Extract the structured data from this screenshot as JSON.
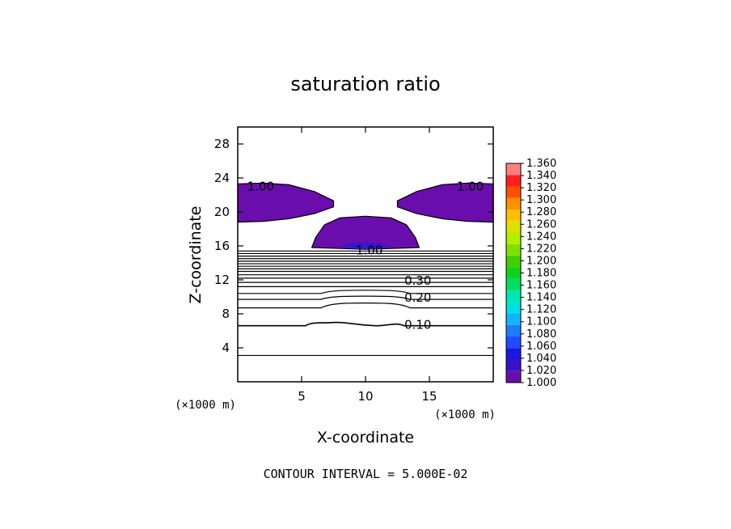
{
  "chart_data": {
    "type": "contour",
    "title": "saturation ratio",
    "xlabel": "X-coordinate",
    "ylabel": "Z-coordinate",
    "x_unit": "(×1000 m)",
    "y_unit": "(×1000 m)",
    "xlim": [
      0,
      20
    ],
    "ylim": [
      0,
      30
    ],
    "x_ticks": [
      5,
      10,
      15
    ],
    "y_ticks": [
      4,
      8,
      12,
      16,
      20,
      24,
      28
    ],
    "contour_interval_label": "CONTOUR INTERVAL = 5.000E-02",
    "contour_interval": 0.05,
    "contour_labels": [
      {
        "text": "1.00",
        "x": 1.8,
        "z": 23.0
      },
      {
        "text": "1.00",
        "x": 18.2,
        "z": 23.0
      },
      {
        "text": "1.00",
        "x": 10.3,
        "z": 15.5
      },
      {
        "text": "0.30",
        "x": 14.1,
        "z": 11.9
      },
      {
        "text": "0.20",
        "x": 14.1,
        "z": 9.9
      },
      {
        "text": "0.10",
        "x": 14.1,
        "z": 6.7
      }
    ],
    "saturated_regions": [
      {
        "name": "upper-left",
        "points": [
          [
            0,
            23.3
          ],
          [
            2,
            23.4
          ],
          [
            4,
            23.2
          ],
          [
            6,
            22.4
          ],
          [
            7.5,
            21.3
          ],
          [
            7.5,
            20.6
          ],
          [
            6,
            19.8
          ],
          [
            4,
            19.2
          ],
          [
            2,
            18.9
          ],
          [
            0,
            18.8
          ]
        ]
      },
      {
        "name": "upper-right",
        "points": [
          [
            20,
            23.3
          ],
          [
            18,
            23.4
          ],
          [
            16,
            23.2
          ],
          [
            14,
            22.4
          ],
          [
            12.5,
            21.3
          ],
          [
            12.5,
            20.6
          ],
          [
            14,
            19.8
          ],
          [
            16,
            19.2
          ],
          [
            18,
            18.9
          ],
          [
            20,
            18.8
          ]
        ]
      },
      {
        "name": "central",
        "points": [
          [
            5.8,
            15.8
          ],
          [
            6.1,
            17.0
          ],
          [
            6.8,
            18.5
          ],
          [
            8.0,
            19.3
          ],
          [
            10.0,
            19.5
          ],
          [
            12.0,
            19.3
          ],
          [
            13.2,
            18.5
          ],
          [
            13.9,
            17.0
          ],
          [
            14.2,
            15.8
          ],
          [
            10.0,
            15.6
          ]
        ]
      }
    ],
    "contour_levels_z": [
      15.4,
      15.1,
      14.8,
      14.5,
      14.2,
      13.9,
      13.6,
      13.3,
      13.0,
      12.6,
      12.2,
      11.7,
      11.2,
      10.4,
      9.7,
      8.7,
      6.6,
      3.1
    ],
    "colorbar": {
      "min": 1.0,
      "max": 1.36,
      "step": 0.02,
      "labels": [
        "1.360",
        "1.340",
        "1.320",
        "1.300",
        "1.280",
        "1.260",
        "1.240",
        "1.220",
        "1.200",
        "1.180",
        "1.160",
        "1.140",
        "1.120",
        "1.100",
        "1.080",
        "1.060",
        "1.040",
        "1.020",
        "1.000"
      ],
      "colors": [
        "#6a0dad",
        "#3a10c8",
        "#1818e0",
        "#1f4cff",
        "#1e7cff",
        "#13b4ff",
        "#00e0e0",
        "#00e8b0",
        "#00e060",
        "#10d020",
        "#40d000",
        "#80e000",
        "#b0f000",
        "#e0e000",
        "#ffc000",
        "#ff9000",
        "#ff5000",
        "#ff2020",
        "#ff8080"
      ]
    }
  }
}
